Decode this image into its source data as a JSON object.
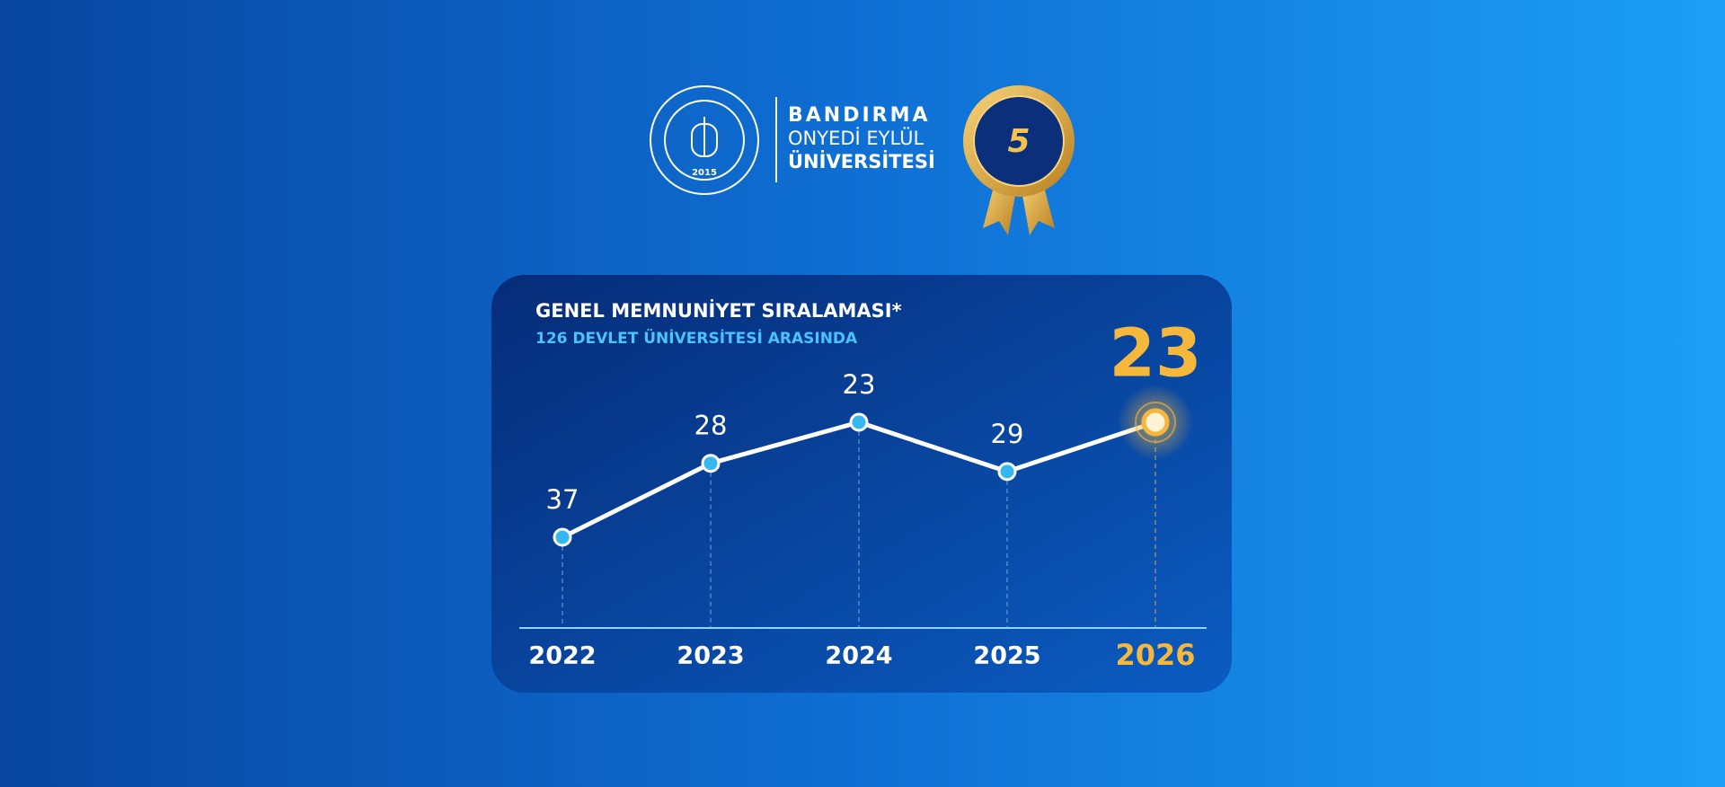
{
  "header": {
    "brand_line1": "BANDIRMA",
    "brand_line2": "ONYEDİ EYLÜL",
    "brand_line3": "ÜNİVERSİTESİ",
    "logo_year": "2015",
    "badge_number": "5"
  },
  "chart_data": {
    "type": "line",
    "title": "GENEL MEMNUNİYET SIRALAMASI*",
    "subtitle": "126 DEVLET ÜNİVERSİTESİ ARASINDA",
    "categories": [
      "2022",
      "2023",
      "2024",
      "2025",
      "2026"
    ],
    "series": [
      {
        "name": "Genel Memnuniyet",
        "color": "#ffffff",
        "values": [
          37,
          28,
          23,
          29,
          23
        ]
      }
    ],
    "point_color": "#35b8f0",
    "highlight_color": "#f5b83d"
  }
}
